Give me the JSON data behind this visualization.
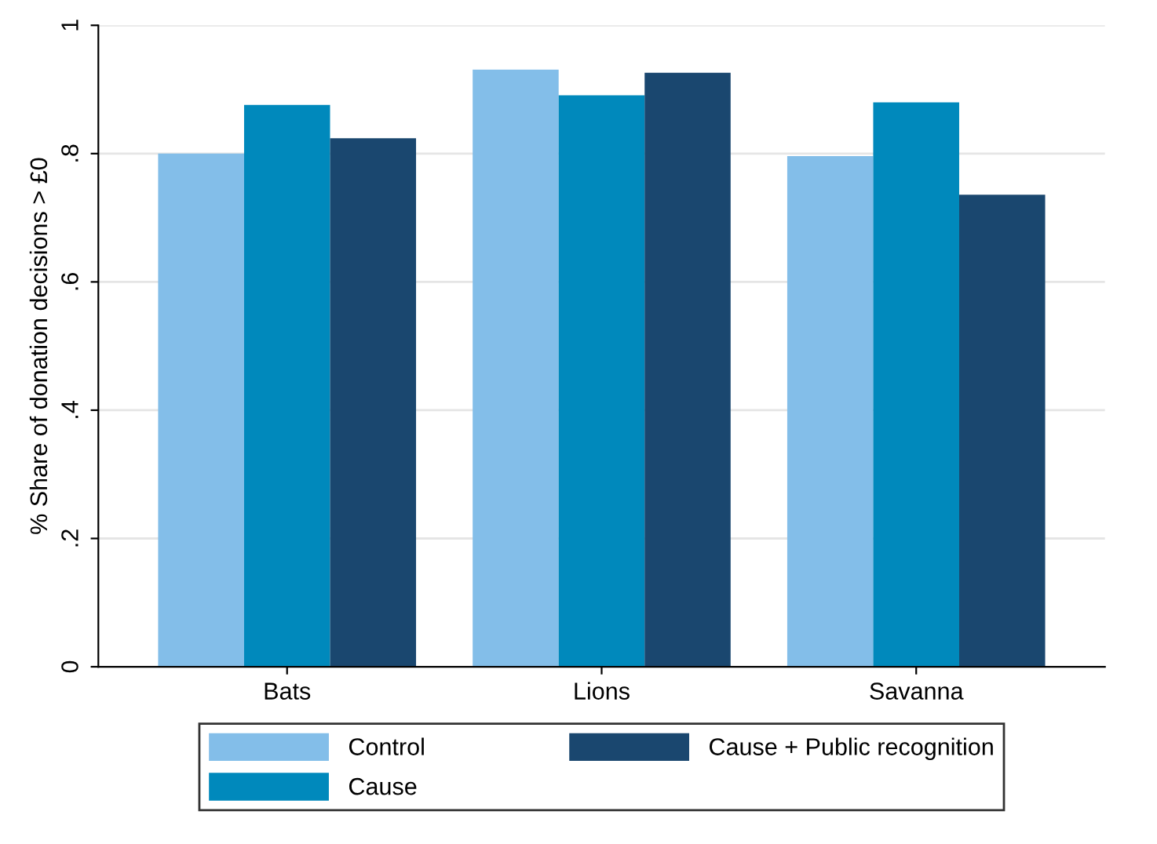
{
  "chart_data": {
    "type": "bar",
    "ylabel": "% Share of donation decisions > £0",
    "categories": [
      "Bats",
      "Lions",
      "Savanna"
    ],
    "series": [
      {
        "name": "Control",
        "color": "#83bee9",
        "values": [
          0.8,
          0.931,
          0.796
        ]
      },
      {
        "name": "Cause",
        "color": "#0089bc",
        "values": [
          0.876,
          0.891,
          0.88
        ]
      },
      {
        "name": "Cause + Public recognition",
        "color": "#1a476f",
        "values": [
          0.824,
          0.926,
          0.736
        ]
      }
    ],
    "ylim": [
      0,
      1.0
    ],
    "yticks": [
      {
        "value": 0,
        "label": "0"
      },
      {
        "value": 0.2,
        "label": ".2"
      },
      {
        "value": 0.4,
        "label": ".4"
      },
      {
        "value": 0.6,
        "label": ".6"
      },
      {
        "value": 0.8,
        "label": ".8"
      },
      {
        "value": 1,
        "label": "1"
      }
    ],
    "grid": "y",
    "legend": "bottom"
  }
}
